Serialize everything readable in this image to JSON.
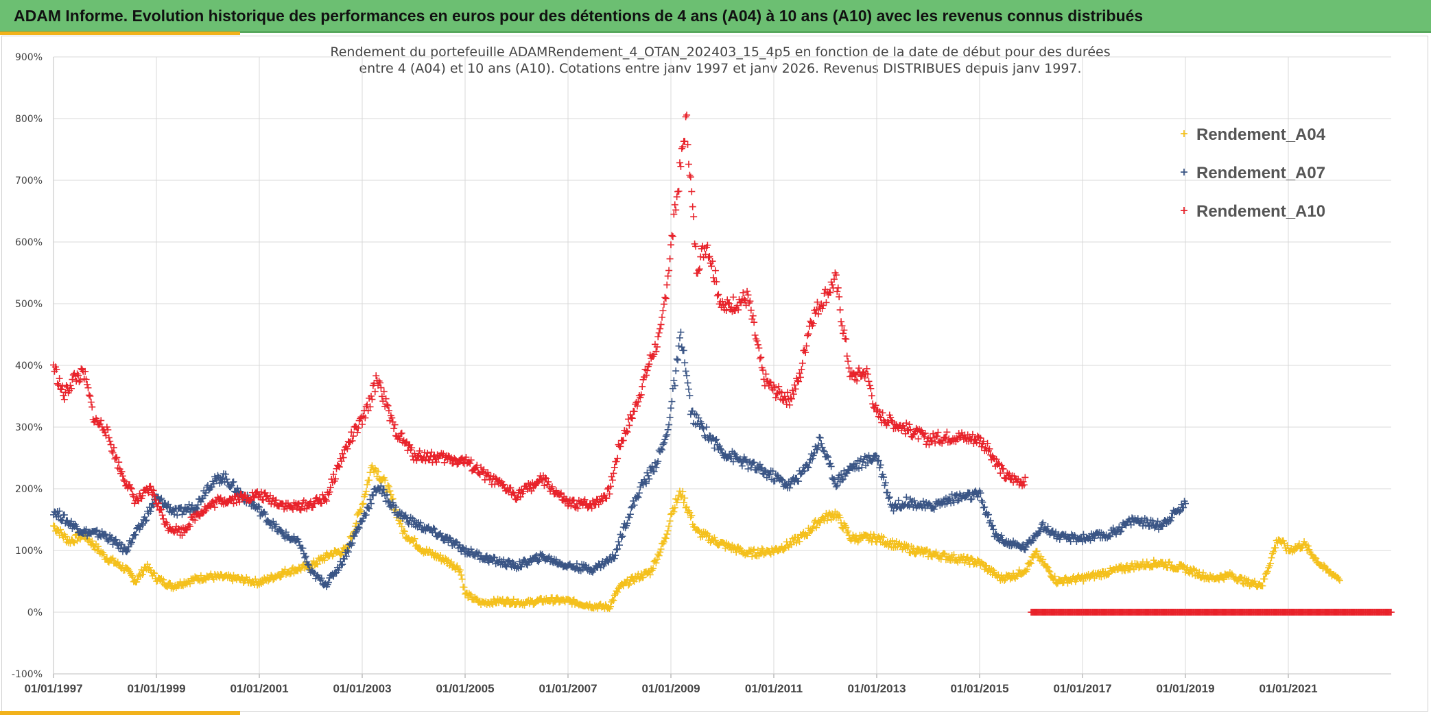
{
  "header": {
    "title": "ADAM Informe. Evolution historique des performances en euros pour des détentions de 4 ans (A04) à 10 ans (A10) avec les revenus connus distribués"
  },
  "colors": {
    "header_bg": "#6cbf72",
    "accent": "#f2b21b",
    "A04": "#f4c01c",
    "A07": "#3a5585",
    "A10": "#e8222a"
  },
  "chart_data": {
    "type": "scatter",
    "title_line1": "Rendement du portefeuille ADAMRendement_4_OTAN_202403_15_4p5  en fonction de la date de début pour des durées",
    "title_line2": "entre 4 (A04) et 10 ans (A10). Cotations entre janv 1997 et janv 2026. Revenus DISTRIBUES depuis janv 1997.",
    "xlabel": "",
    "ylabel": "",
    "ylim": [
      -100,
      900
    ],
    "xlim": [
      1997.0,
      2023.0
    ],
    "y_ticks": [
      -100,
      0,
      100,
      200,
      300,
      400,
      500,
      600,
      700,
      800,
      900
    ],
    "y_tick_labels": [
      "-100%",
      "0%",
      "100%",
      "200%",
      "300%",
      "400%",
      "500%",
      "600%",
      "700%",
      "800%",
      "900%"
    ],
    "x_ticks": [
      1997,
      1999,
      2001,
      2003,
      2005,
      2007,
      2009,
      2011,
      2013,
      2015,
      2017,
      2019,
      2021
    ],
    "x_tick_labels": [
      "01/01/1997",
      "01/01/1999",
      "01/01/2001",
      "01/01/2003",
      "01/01/2005",
      "01/01/2007",
      "01/01/2009",
      "01/01/2011",
      "01/01/2013",
      "01/01/2015",
      "01/01/2017",
      "01/01/2019",
      "01/01/2021"
    ],
    "legend_position": "top-right",
    "marker": "+",
    "series": [
      {
        "name": "Rendement_A04",
        "color": "#f4c01c",
        "x": [
          1997.0,
          1997.3,
          1997.6,
          1998.0,
          1998.4,
          1998.6,
          1998.8,
          1999.0,
          1999.3,
          1999.6,
          2000.0,
          2000.5,
          2001.0,
          2001.5,
          2002.0,
          2002.4,
          2002.7,
          2003.0,
          2003.2,
          2003.5,
          2003.8,
          2004.2,
          2004.6,
          2004.9,
          2005.0,
          2005.3,
          2005.7,
          2006.2,
          2006.6,
          2007.0,
          2007.5,
          2007.8,
          2008.0,
          2008.3,
          2008.6,
          2008.9,
          2009.0,
          2009.2,
          2009.5,
          2010.0,
          2010.5,
          2011.0,
          2011.3,
          2011.6,
          2011.9,
          2012.2,
          2012.5,
          2013.0,
          2013.5,
          2014.0,
          2014.5,
          2015.0,
          2015.4,
          2015.7,
          2015.9,
          2016.1,
          2016.5,
          2017.0,
          2017.5,
          2018.0,
          2018.5,
          2019.0,
          2019.5,
          2019.9,
          2020.2,
          2020.5,
          2020.8,
          2021.0,
          2021.3,
          2021.7,
          2022.0
        ],
        "values": [
          140,
          115,
          125,
          90,
          70,
          50,
          75,
          55,
          42,
          50,
          58,
          55,
          48,
          65,
          75,
          95,
          100,
          175,
          240,
          200,
          130,
          100,
          85,
          70,
          30,
          15,
          18,
          15,
          20,
          18,
          10,
          8,
          40,
          55,
          65,
          120,
          160,
          195,
          130,
          110,
          95,
          100,
          110,
          125,
          150,
          160,
          120,
          120,
          105,
          95,
          88,
          80,
          55,
          60,
          70,
          95,
          50,
          55,
          65,
          75,
          80,
          70,
          55,
          60,
          48,
          45,
          120,
          100,
          110,
          70,
          55
        ]
      },
      {
        "name": "Rendement_A07",
        "color": "#3a5585",
        "x": [
          1997.0,
          1997.3,
          1997.6,
          1998.0,
          1998.4,
          1998.7,
          1999.0,
          1999.4,
          1999.8,
          2000.0,
          2000.3,
          2000.6,
          2001.0,
          2001.4,
          2001.8,
          2002.0,
          2002.3,
          2002.6,
          2003.0,
          2003.3,
          2003.7,
          2004.0,
          2004.5,
          2005.0,
          2005.5,
          2006.0,
          2006.5,
          2007.0,
          2007.5,
          2007.9,
          2008.1,
          2008.4,
          2008.7,
          2008.9,
          2009.0,
          2009.2,
          2009.4,
          2009.6,
          2010.0,
          2010.5,
          2011.0,
          2011.3,
          2011.6,
          2011.9,
          2012.2,
          2012.5,
          2012.8,
          2013.0,
          2013.3,
          2013.6,
          2014.0,
          2014.5,
          2015.0,
          2015.3,
          2015.6,
          2015.9,
          2016.2,
          2016.6,
          2017.0,
          2017.5,
          2018.0,
          2018.5,
          2019.0
        ],
        "values": [
          165,
          145,
          130,
          125,
          100,
          140,
          185,
          160,
          175,
          205,
          220,
          195,
          165,
          130,
          110,
          65,
          45,
          80,
          150,
          205,
          160,
          145,
          125,
          100,
          85,
          75,
          90,
          75,
          70,
          90,
          140,
          200,
          240,
          280,
          330,
          450,
          320,
          300,
          260,
          240,
          220,
          205,
          230,
          280,
          210,
          235,
          245,
          255,
          170,
          180,
          170,
          185,
          190,
          125,
          110,
          105,
          140,
          120,
          120,
          125,
          150,
          140,
          175
        ]
      },
      {
        "name": "Rendement_A10",
        "color": "#e8222a",
        "x": [
          1997.0,
          1997.2,
          1997.4,
          1997.6,
          1997.8,
          1998.0,
          1998.3,
          1998.6,
          1998.9,
          1999.2,
          1999.5,
          1999.8,
          2000.2,
          2000.6,
          2001.0,
          2001.3,
          2001.6,
          2002.0,
          2002.3,
          2002.6,
          2002.8,
          2003.0,
          2003.1,
          2003.3,
          2003.6,
          2004.0,
          2004.5,
          2005.0,
          2005.5,
          2006.0,
          2006.5,
          2007.0,
          2007.5,
          2007.8,
          2008.0,
          2008.3,
          2008.6,
          2008.8,
          2009.0,
          2009.1,
          2009.3,
          2009.5,
          2009.7,
          2010.0,
          2010.2,
          2010.5,
          2010.8,
          2011.0,
          2011.3,
          2011.5,
          2011.7,
          2011.9,
          2012.2,
          2012.5,
          2012.8,
          2013.0,
          2013.5,
          2014.0,
          2014.5,
          2015.0,
          2015.2,
          2015.5,
          2015.9
        ],
        "values": [
          400,
          350,
          380,
          385,
          310,
          300,
          230,
          180,
          200,
          140,
          130,
          160,
          180,
          185,
          190,
          180,
          170,
          175,
          185,
          250,
          285,
          310,
          330,
          380,
          300,
          255,
          250,
          245,
          215,
          190,
          215,
          175,
          175,
          195,
          270,
          330,
          410,
          450,
          590,
          660,
          800,
          560,
          600,
          490,
          500,
          510,
          380,
          360,
          345,
          380,
          470,
          500,
          540,
          380,
          390,
          320,
          300,
          280,
          285,
          280,
          260,
          220,
          210
        ]
      }
    ],
    "a10_zero_band": {
      "x_start": 2016.0,
      "x_end": 2023.0,
      "value": 0
    }
  }
}
